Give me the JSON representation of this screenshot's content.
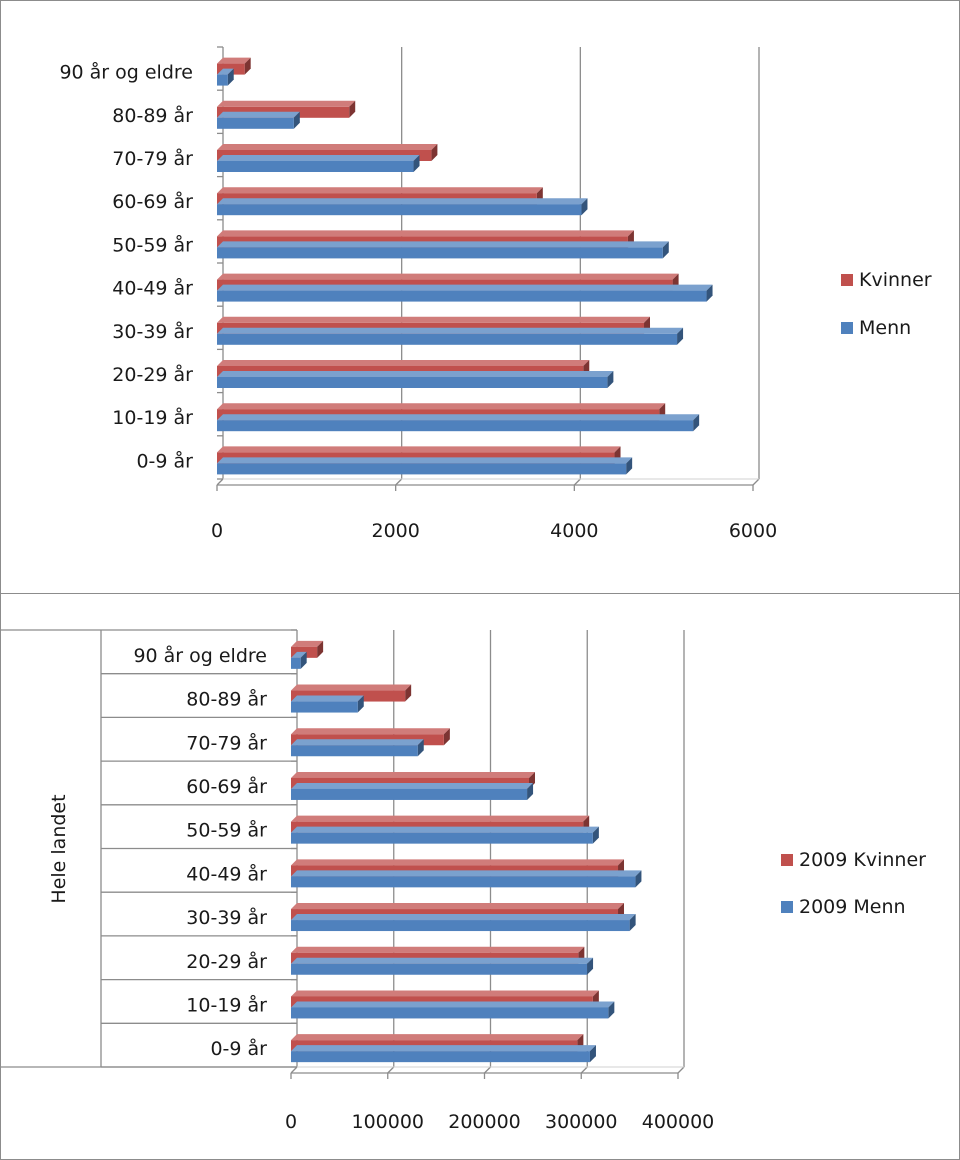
{
  "chart_data": [
    {
      "type": "bar",
      "orientation": "horizontal",
      "categories": [
        "0-9 år",
        "10-19 år",
        "20-29 år",
        "30-39 år",
        "40-49 år",
        "50-59 år",
        "60-69 år",
        "70-79 år",
        "80-89 år",
        "90 år og eldre"
      ],
      "series": [
        {
          "name": "Kvinner",
          "color": "#c0504d",
          "values": [
            4450,
            4950,
            4100,
            4780,
            5100,
            4600,
            3580,
            2400,
            1480,
            310
          ]
        },
        {
          "name": "Menn",
          "color": "#4f81bd",
          "values": [
            4580,
            5330,
            4370,
            5150,
            5480,
            4990,
            4080,
            2200,
            860,
            120
          ]
        }
      ],
      "xlim": [
        0,
        6000
      ],
      "xticks": [
        "0",
        "2000",
        "4000",
        "6000"
      ],
      "grid": true,
      "legend": "right",
      "style": "3d-clustered"
    },
    {
      "type": "bar",
      "orientation": "horizontal",
      "group_label": "Hele landet",
      "categories": [
        "0-9 år",
        "10-19 år",
        "20-29 år",
        "30-39 år",
        "40-49 år",
        "50-59 år",
        "60-69 år",
        "70-79 år",
        "80-89 år",
        "90 år og eldre"
      ],
      "series": [
        {
          "name": "2009 Kvinner",
          "color": "#c0504d",
          "values": [
            296000,
            312000,
            297000,
            338000,
            338000,
            302000,
            246000,
            158000,
            118000,
            27000
          ]
        },
        {
          "name": "2009 Menn",
          "color": "#4f81bd",
          "values": [
            309000,
            328000,
            306000,
            350000,
            356000,
            312000,
            244000,
            131000,
            69000,
            10000
          ]
        }
      ],
      "xlim": [
        0,
        400000
      ],
      "xticks": [
        "0",
        "100000",
        "200000",
        "300000",
        "400000"
      ],
      "grid": true,
      "legend": "right",
      "style": "3d-clustered"
    }
  ]
}
